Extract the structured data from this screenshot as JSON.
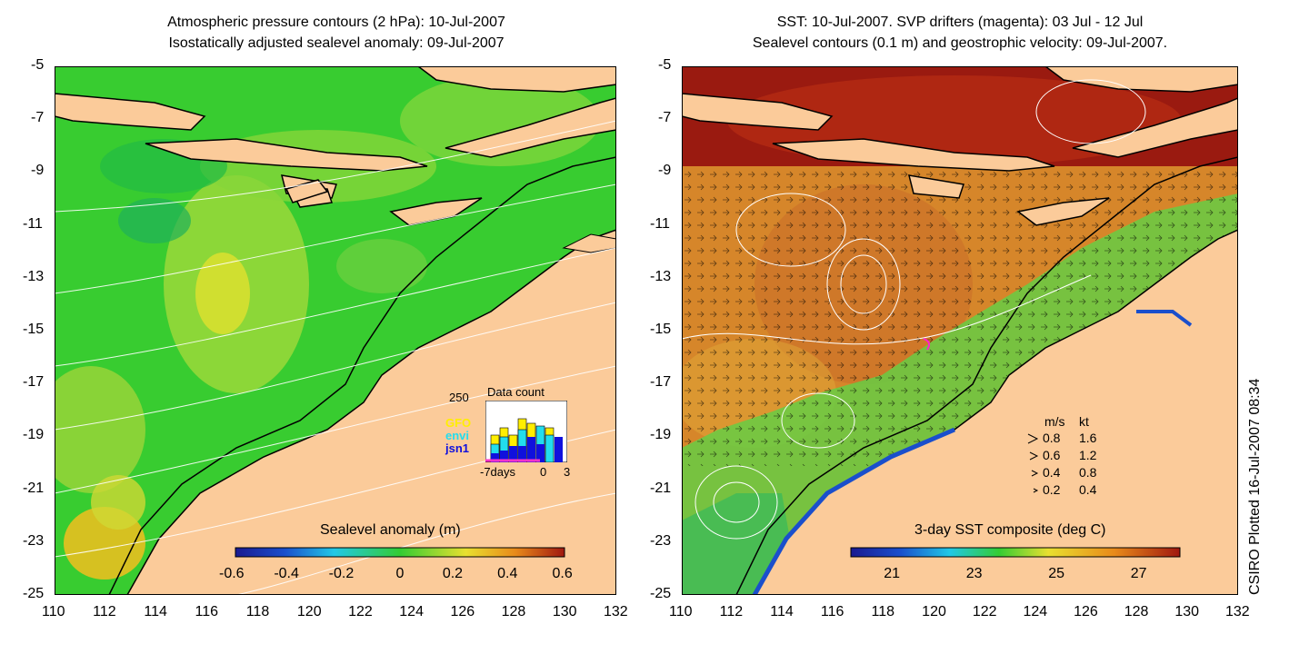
{
  "left_panel": {
    "title_line1": "Atmospheric pressure contours (2 hPa): 10-Jul-2007",
    "title_line2": "Isostatically adjusted sealevel anomaly: 09-Jul-2007",
    "colorbar": {
      "label": "Sealevel anomaly (m)",
      "ticks": [
        "-0.6",
        "-0.4",
        "-0.2",
        "0",
        "0.2",
        "0.4",
        "0.6"
      ],
      "range": [
        -0.6,
        0.6
      ]
    },
    "inset": {
      "label_250": "250",
      "title": "Data count",
      "legend": [
        {
          "name": "GFO",
          "color": "#ffee00"
        },
        {
          "name": "envi",
          "color": "#22ddee"
        },
        {
          "name": "jsn1",
          "color": "#1010dd"
        }
      ],
      "xlabel": "-7days",
      "xtick_0": "0",
      "xtick_3": "3"
    }
  },
  "right_panel": {
    "title_line1": "SST: 10-Jul-2007. SVP drifters (magenta): 03 Jul - 12 Jul",
    "title_line2": "Sealevel contours (0.1 m) and geostrophic velocity: 09-Jul-2007.",
    "colorbar": {
      "label": "3-day SST composite (deg C)",
      "ticks": [
        "21",
        "23",
        "25",
        "27"
      ],
      "range": [
        20,
        28
      ]
    },
    "velocity_key": {
      "header_ms": "m/s",
      "header_kt": "kt",
      "rows": [
        {
          "ms": "0.8",
          "kt": "1.6"
        },
        {
          "ms": "0.6",
          "kt": "1.2"
        },
        {
          "ms": "0.4",
          "kt": "0.8"
        },
        {
          "ms": "0.2",
          "kt": "0.4"
        }
      ]
    }
  },
  "axes": {
    "x_ticks": [
      "110",
      "112",
      "114",
      "116",
      "118",
      "120",
      "122",
      "124",
      "126",
      "128",
      "130",
      "132"
    ],
    "y_ticks": [
      "-5",
      "-7",
      "-9",
      "-11",
      "-13",
      "-15",
      "-17",
      "-19",
      "-21",
      "-23",
      "-25"
    ]
  },
  "credit": "CSIRO Plotted 16-Jul-2007 08:34",
  "colors": {
    "land": "#fbcb9a",
    "ocean_green": "#33cc33",
    "sst_orange": "#d6862a",
    "sst_red": "#9a1a10"
  }
}
